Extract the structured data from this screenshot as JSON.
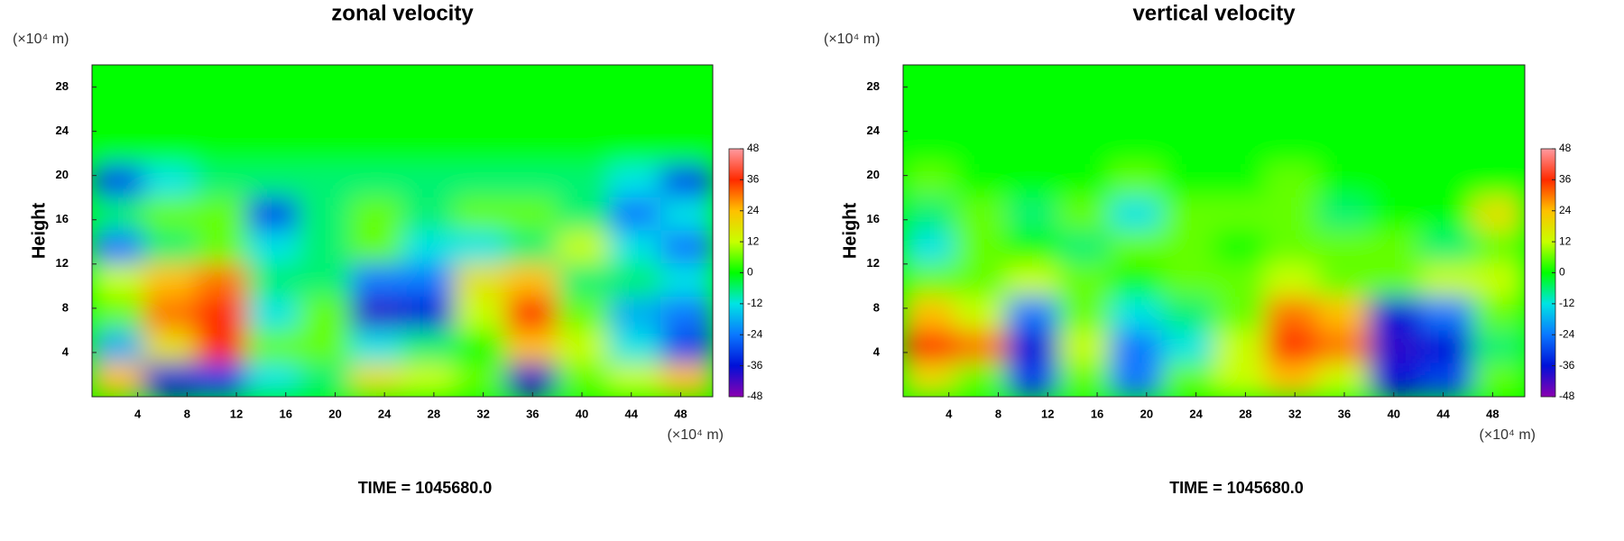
{
  "chart_data": [
    {
      "type": "heatmap",
      "title": "zonal velocity",
      "ylabel": "Height",
      "x_unit_label": "(×10⁴ m)",
      "y_unit_label": "(×10⁴ m)",
      "footer": "TIME = 1045680.0",
      "xlim": [
        0.3,
        50.6
      ],
      "ylim": [
        0,
        30
      ],
      "xticks": [
        4,
        8,
        12,
        16,
        20,
        24,
        28,
        32,
        36,
        40,
        44,
        48
      ],
      "yticks": [
        4,
        8,
        12,
        16,
        20,
        24,
        28
      ],
      "clim": [
        -48,
        48
      ],
      "colorbar_ticks": [
        -48,
        -36,
        -24,
        -12,
        0,
        12,
        24,
        36,
        48
      ],
      "colorbar_colors": [
        "#8a00b0",
        "#0010d8",
        "#0a78ff",
        "#00e4e4",
        "#00ff00",
        "#c8ff00",
        "#ffc000",
        "#ff2a00",
        "#ff9aa0"
      ],
      "z": [
        [
          0,
          0,
          0,
          0,
          0,
          0,
          0,
          0,
          0,
          0,
          0,
          0
        ],
        [
          0,
          0,
          0,
          0,
          0,
          0,
          0,
          0,
          0,
          0,
          0,
          0
        ],
        [
          0,
          0,
          0,
          0,
          0,
          0,
          0,
          0,
          0,
          0,
          0,
          0
        ],
        [
          -30,
          -12,
          -6,
          -6,
          -6,
          -6,
          -6,
          -6,
          -6,
          -6,
          -12,
          -30
        ],
        [
          -6,
          6,
          6,
          -30,
          -6,
          6,
          -6,
          6,
          6,
          -6,
          -24,
          -12
        ],
        [
          -24,
          -6,
          6,
          -12,
          -6,
          6,
          -12,
          -12,
          -6,
          12,
          -12,
          -24
        ],
        [
          12,
          24,
          30,
          -6,
          -6,
          -24,
          -24,
          18,
          24,
          -6,
          -6,
          -12
        ],
        [
          6,
          30,
          36,
          -12,
          6,
          -40,
          -36,
          12,
          36,
          6,
          -18,
          -24
        ],
        [
          -18,
          18,
          36,
          6,
          6,
          -12,
          -6,
          0,
          24,
          12,
          -12,
          -30
        ],
        [
          24,
          -36,
          -30,
          -12,
          -6,
          18,
          12,
          6,
          -40,
          6,
          12,
          24
        ]
      ]
    },
    {
      "type": "heatmap",
      "title": "vertical velocity",
      "ylabel": "Height",
      "x_unit_label": "(×10⁴ m)",
      "y_unit_label": "(×10⁴ m)",
      "footer": "TIME = 1045680.0",
      "xlim": [
        0.3,
        50.6
      ],
      "ylim": [
        0,
        30
      ],
      "xticks": [
        4,
        8,
        12,
        16,
        20,
        24,
        28,
        32,
        36,
        40,
        44,
        48
      ],
      "yticks": [
        4,
        8,
        12,
        16,
        20,
        24,
        28
      ],
      "clim": [
        -48,
        48
      ],
      "colorbar_ticks": [
        -48,
        -36,
        -24,
        -12,
        0,
        12,
        24,
        36,
        48
      ],
      "colorbar_colors": [
        "#8a00b0",
        "#0010d8",
        "#0a78ff",
        "#00e4e4",
        "#00ff00",
        "#c8ff00",
        "#ffc000",
        "#ff2a00",
        "#ff9aa0"
      ],
      "z": [
        [
          0,
          0,
          0,
          0,
          0,
          0,
          0,
          0,
          0,
          0,
          0,
          0
        ],
        [
          0,
          0,
          0,
          0,
          0,
          0,
          0,
          0,
          0,
          0,
          0,
          0
        ],
        [
          0,
          0,
          0,
          0,
          0,
          0,
          0,
          0,
          0,
          0,
          0,
          0
        ],
        [
          6,
          0,
          0,
          0,
          6,
          0,
          0,
          6,
          0,
          0,
          0,
          0
        ],
        [
          -6,
          6,
          -6,
          6,
          -12,
          6,
          6,
          6,
          -6,
          0,
          0,
          18
        ],
        [
          -12,
          6,
          0,
          -6,
          6,
          6,
          0,
          6,
          6,
          6,
          -6,
          6
        ],
        [
          6,
          6,
          12,
          6,
          0,
          6,
          6,
          12,
          6,
          6,
          12,
          12
        ],
        [
          24,
          12,
          -24,
          6,
          -12,
          -6,
          6,
          30,
          24,
          -36,
          -24,
          6
        ],
        [
          36,
          30,
          -36,
          12,
          -24,
          -12,
          12,
          36,
          30,
          -40,
          -36,
          -6
        ],
        [
          18,
          6,
          -30,
          6,
          -24,
          6,
          12,
          24,
          12,
          -36,
          -30,
          6
        ]
      ]
    }
  ]
}
